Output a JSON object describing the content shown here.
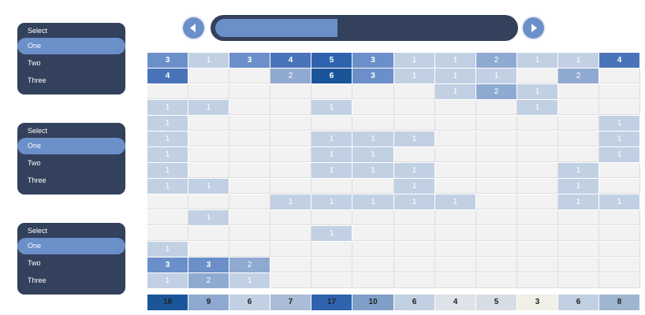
{
  "slicers": [
    {
      "options": [
        "Select",
        "One",
        "Two",
        "Three"
      ],
      "selected": 1
    },
    {
      "options": [
        "Select",
        "One",
        "Two",
        "Three"
      ],
      "selected": 1
    },
    {
      "options": [
        "Select",
        "One",
        "Two",
        "Three"
      ],
      "selected": 1
    }
  ],
  "scrollbar": {
    "position_fraction": 0.41,
    "prev_icon": "chevron-left-icon",
    "next_icon": "chevron-right-icon"
  },
  "colors": {
    "dark": "#33415c",
    "accent": "#6b8fc9",
    "empty": "#f2f2f2"
  },
  "grid": {
    "columns": 12,
    "rows": [
      [
        3,
        1,
        3,
        4,
        5,
        3,
        1,
        1,
        2,
        1,
        1,
        4
      ],
      [
        4,
        null,
        null,
        2,
        6,
        3,
        1,
        1,
        1,
        null,
        2,
        null
      ],
      [
        null,
        null,
        null,
        null,
        null,
        null,
        null,
        1,
        2,
        1,
        null,
        null
      ],
      [
        1,
        1,
        null,
        null,
        1,
        null,
        null,
        null,
        null,
        1,
        null,
        null
      ],
      [
        1,
        null,
        null,
        null,
        null,
        null,
        null,
        null,
        null,
        null,
        null,
        1
      ],
      [
        1,
        null,
        null,
        null,
        1,
        1,
        1,
        null,
        null,
        null,
        null,
        1
      ],
      [
        1,
        null,
        null,
        null,
        1,
        1,
        null,
        null,
        null,
        null,
        null,
        1
      ],
      [
        1,
        null,
        null,
        null,
        1,
        1,
        1,
        null,
        null,
        null,
        1,
        null
      ],
      [
        1,
        1,
        null,
        null,
        null,
        null,
        1,
        null,
        null,
        null,
        1,
        null
      ],
      [
        null,
        null,
        null,
        1,
        1,
        1,
        1,
        1,
        null,
        null,
        1,
        1
      ],
      [
        null,
        1,
        null,
        null,
        null,
        null,
        null,
        null,
        null,
        null,
        null,
        null
      ],
      [
        null,
        null,
        null,
        null,
        1,
        null,
        null,
        null,
        null,
        null,
        null,
        null
      ],
      [
        1,
        null,
        null,
        null,
        null,
        null,
        null,
        null,
        null,
        null,
        null,
        null
      ],
      [
        3,
        3,
        2,
        null,
        null,
        null,
        null,
        null,
        null,
        null,
        null,
        null
      ],
      [
        1,
        2,
        1,
        null,
        null,
        null,
        null,
        null,
        null,
        null,
        null,
        null
      ]
    ],
    "totals": [
      18,
      9,
      6,
      7,
      17,
      10,
      6,
      4,
      5,
      3,
      6,
      8
    ],
    "total_colors": [
      "#1b5599",
      "#8faad1",
      "#c2d0e4",
      "#aabcd6",
      "#2f63ad",
      "#7f9fc8",
      "#c2d0e4",
      "#dde3e8",
      "#d6dde4",
      "#f1f0e6",
      "#c2d0e4",
      "#9fb6d1"
    ]
  }
}
